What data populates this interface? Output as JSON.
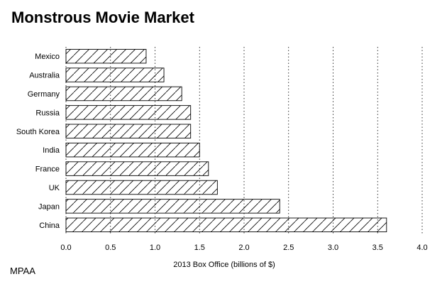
{
  "title": "Monstrous Movie Market",
  "source": "MPAA",
  "chart_data": {
    "type": "bar",
    "orientation": "horizontal",
    "title": "Monstrous Movie Market",
    "xlabel": "2013 Box Office (billions of $)",
    "ylabel": "",
    "categories": [
      "Mexico",
      "Australia",
      "Germany",
      "Russia",
      "South Korea",
      "India",
      "France",
      "UK",
      "Japan",
      "China"
    ],
    "values": [
      0.9,
      1.1,
      1.3,
      1.4,
      1.4,
      1.5,
      1.6,
      1.7,
      2.4,
      3.6
    ],
    "xlim": [
      0,
      4
    ],
    "xticks": [
      "0.0",
      "0.5",
      "1.0",
      "1.5",
      "2.0",
      "2.5",
      "3.0",
      "3.5",
      "4.0"
    ],
    "grid": "vertical dotted",
    "bar_fill": "hatched",
    "source": "MPAA"
  }
}
